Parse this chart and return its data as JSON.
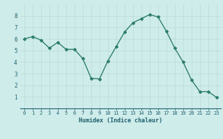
{
  "x": [
    0,
    1,
    2,
    3,
    4,
    5,
    6,
    7,
    8,
    9,
    10,
    11,
    12,
    13,
    14,
    15,
    16,
    17,
    18,
    19,
    20,
    21,
    22,
    23
  ],
  "y": [
    6.0,
    6.2,
    5.9,
    5.2,
    5.7,
    5.1,
    5.1,
    4.3,
    2.6,
    2.55,
    4.1,
    5.35,
    6.6,
    7.4,
    7.75,
    8.1,
    7.9,
    6.65,
    5.2,
    4.0,
    2.45,
    1.45,
    1.45,
    0.95
  ],
  "line_color": "#2e7d6e",
  "bg_color": "#ceecea",
  "grid_color": "#b8dbd8",
  "xlabel": "Humidex (Indice chaleur)",
  "xlim": [
    -0.5,
    23.5
  ],
  "ylim": [
    0,
    9
  ],
  "yticks": [
    1,
    2,
    3,
    4,
    5,
    6,
    7,
    8
  ],
  "xticks": [
    0,
    1,
    2,
    3,
    4,
    5,
    6,
    7,
    8,
    9,
    10,
    11,
    12,
    13,
    14,
    15,
    16,
    17,
    18,
    19,
    20,
    21,
    22,
    23
  ],
  "font_color": "#1e5f6e",
  "tick_fontsize": 5.0,
  "xlabel_fontsize": 6.0,
  "marker": "D",
  "markersize": 2.0,
  "linewidth": 1.0
}
